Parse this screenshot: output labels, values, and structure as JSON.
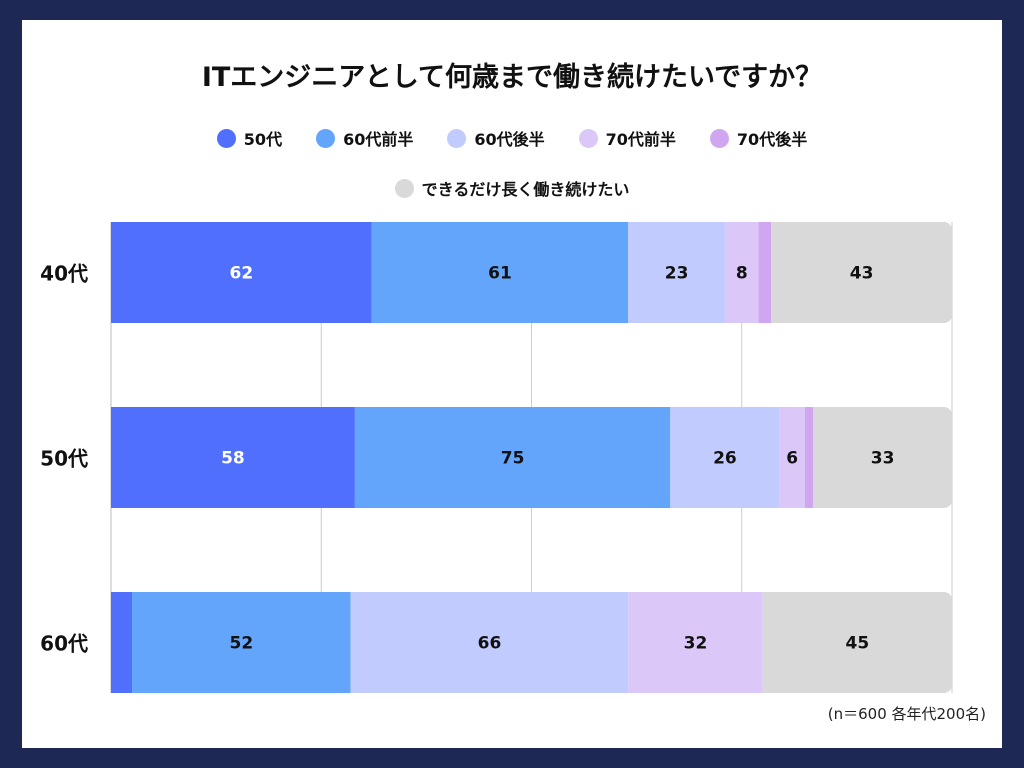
{
  "chart_data": {
    "type": "bar",
    "orientation": "horizontal",
    "stacked": true,
    "title": "ITエンジニアとして何歳まで働き続けたいですか？",
    "categories": [
      "40代",
      "50代",
      "60代"
    ],
    "series": [
      {
        "name": "50代",
        "color": "#4f6ffc",
        "values": [
          62,
          58,
          5
        ]
      },
      {
        "name": "60代前半",
        "color": "#62a5fa",
        "values": [
          61,
          75,
          52
        ]
      },
      {
        "name": "60代後半",
        "color": "#c2cbfd",
        "values": [
          23,
          26,
          66
        ]
      },
      {
        "name": "70代前半",
        "color": "#dbc8f8",
        "values": [
          8,
          6,
          32
        ]
      },
      {
        "name": "70代後半",
        "color": "#cfa6ef",
        "values": [
          3,
          2,
          0
        ]
      },
      {
        "name": "できるだけ長く働き続けたい",
        "color": "#d9d9d9",
        "values": [
          43,
          33,
          45
        ]
      }
    ],
    "xlim": [
      0,
      200
    ],
    "grid": true,
    "legend_position": "top",
    "note": "(n＝600 各年代200名)"
  }
}
